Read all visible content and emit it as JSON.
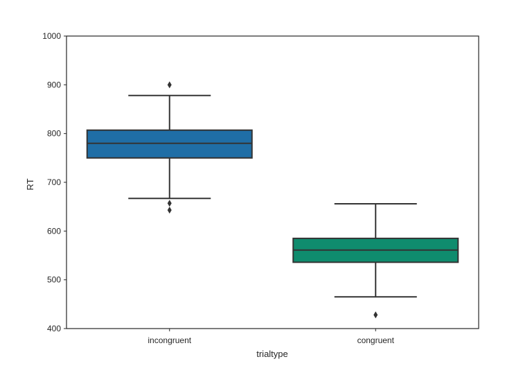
{
  "chart_data": {
    "type": "box",
    "xlabel": "trialtype",
    "ylabel": "RT",
    "ylim": [
      400,
      1000
    ],
    "yticks": [
      400,
      500,
      600,
      700,
      800,
      900,
      1000
    ],
    "grid": false,
    "categories": [
      "incongruent",
      "congruent"
    ],
    "boxes": [
      {
        "category": "incongruent",
        "color": "#1f6ea6",
        "whisker_low": 667,
        "q1": 750,
        "median": 780,
        "q3": 807,
        "whisker_high": 878,
        "outliers": [
          900,
          657,
          643
        ]
      },
      {
        "category": "congruent",
        "color": "#0f8c6e",
        "whisker_low": 465,
        "q1": 536,
        "median": 561,
        "q3": 585,
        "whisker_high": 656,
        "outliers": [
          428
        ]
      }
    ]
  },
  "colors": {
    "axis_frame": "#262626",
    "box_edge": "#333333",
    "background": "#ffffff"
  }
}
